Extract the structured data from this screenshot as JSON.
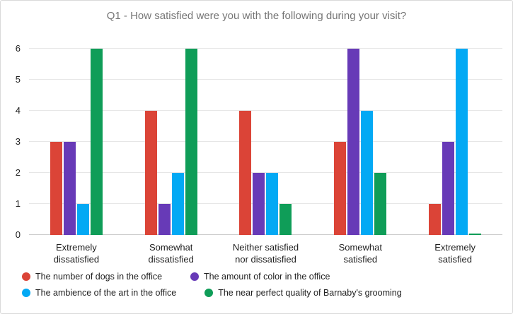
{
  "chart_data": {
    "type": "bar",
    "title": "Q1 - How satisfied were you with the following during your visit?",
    "categories": [
      "Extremely dissatisfied",
      "Somewhat dissatisfied",
      "Neither satisfied nor dissatisfied",
      "Somewhat satisfied",
      "Extremely satisfied"
    ],
    "series": [
      {
        "name": "The number of dogs in the office",
        "color": "#db4437",
        "values": [
          3,
          4,
          4,
          3,
          1
        ]
      },
      {
        "name": "The amount of color in the office",
        "color": "#673ab7",
        "values": [
          3,
          1,
          2,
          6,
          3
        ]
      },
      {
        "name": "The ambience of the art in the office",
        "color": "#03a9f4",
        "values": [
          1,
          2,
          2,
          4,
          6
        ]
      },
      {
        "name": "The near perfect quality of Barnaby's grooming",
        "color": "#0f9d58",
        "values": [
          6,
          6,
          1,
          2,
          0
        ]
      }
    ],
    "ylim": [
      0,
      6
    ],
    "yticks": [
      0,
      1,
      2,
      3,
      4,
      5,
      6
    ],
    "grid": true,
    "legend_position": "bottom",
    "colors": {
      "title_text": "#757575",
      "axis_text": "#212121",
      "gridline": "#e6e6e6",
      "background": "#ffffff"
    }
  }
}
